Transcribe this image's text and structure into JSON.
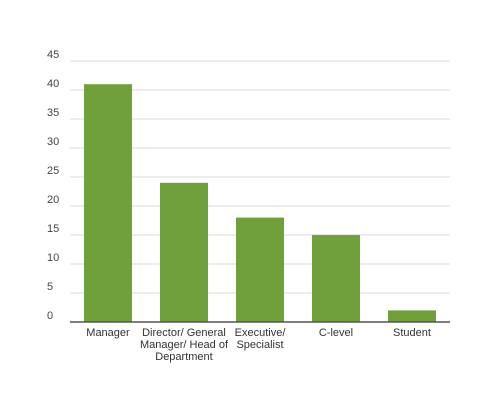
{
  "chart_data": {
    "type": "bar",
    "categories": [
      [
        "Manager"
      ],
      [
        "Director/ General",
        "Manager/ Head of",
        "Department"
      ],
      [
        "Executive/",
        "Specialist"
      ],
      [
        "C-level"
      ],
      [
        "Student"
      ]
    ],
    "values": [
      41,
      24,
      18,
      15,
      2
    ],
    "yticks": [
      "0",
      "5",
      "10",
      "15",
      "20",
      "25",
      "30",
      "35",
      "40",
      "45"
    ],
    "ylim": [
      0,
      45
    ],
    "grid": true,
    "bar_color": "#70a03a",
    "title": "",
    "xlabel": "",
    "ylabel": ""
  }
}
